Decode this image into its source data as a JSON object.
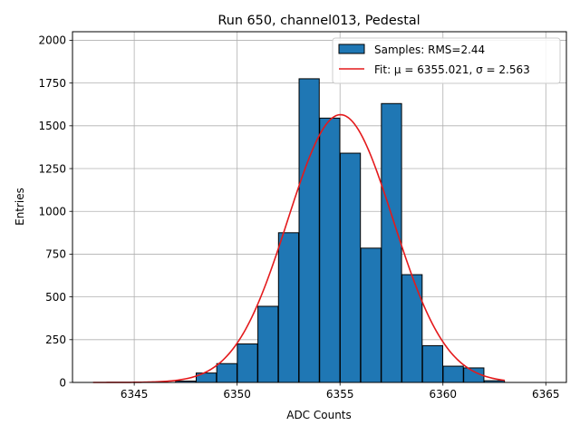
{
  "chart_data": {
    "type": "bar",
    "title": "Run 650, channel013, Pedestal",
    "xlabel": "ADC Counts",
    "ylabel": "Entries",
    "xlim": [
      6342,
      6366
    ],
    "ylim": [
      0,
      2050
    ],
    "xticks": [
      6345,
      6350,
      6355,
      6360,
      6365
    ],
    "yticks": [
      0,
      250,
      500,
      750,
      1000,
      1250,
      1500,
      1750,
      2000
    ],
    "grid": true,
    "legend_position": "top-right",
    "bin_width": 0.98,
    "bins": [
      {
        "x": 6347.5,
        "count": 8
      },
      {
        "x": 6348.5,
        "count": 55
      },
      {
        "x": 6349.5,
        "count": 110
      },
      {
        "x": 6350.5,
        "count": 225
      },
      {
        "x": 6351.5,
        "count": 445
      },
      {
        "x": 6352.5,
        "count": 875
      },
      {
        "x": 6353.5,
        "count": 1775
      },
      {
        "x": 6354.5,
        "count": 1545
      },
      {
        "x": 6355.5,
        "count": 1340
      },
      {
        "x": 6356.5,
        "count": 785
      },
      {
        "x": 6357.5,
        "count": 1630
      },
      {
        "x": 6358.5,
        "count": 630
      },
      {
        "x": 6359.5,
        "count": 215
      },
      {
        "x": 6360.5,
        "count": 95
      },
      {
        "x": 6361.5,
        "count": 85
      },
      {
        "x": 6362.5,
        "count": 10
      }
    ],
    "fit": {
      "mu": 6355.021,
      "sigma": 2.563,
      "amplitude": 1565,
      "x_range": [
        6343,
        6363
      ]
    },
    "series": [
      {
        "name": "Samples: RMS=2.44",
        "kind": "histogram",
        "color": "#1f77b4"
      },
      {
        "name": "Fit: μ = 6355.021, σ = 2.563",
        "kind": "line",
        "color": "#e41a1c"
      }
    ]
  }
}
